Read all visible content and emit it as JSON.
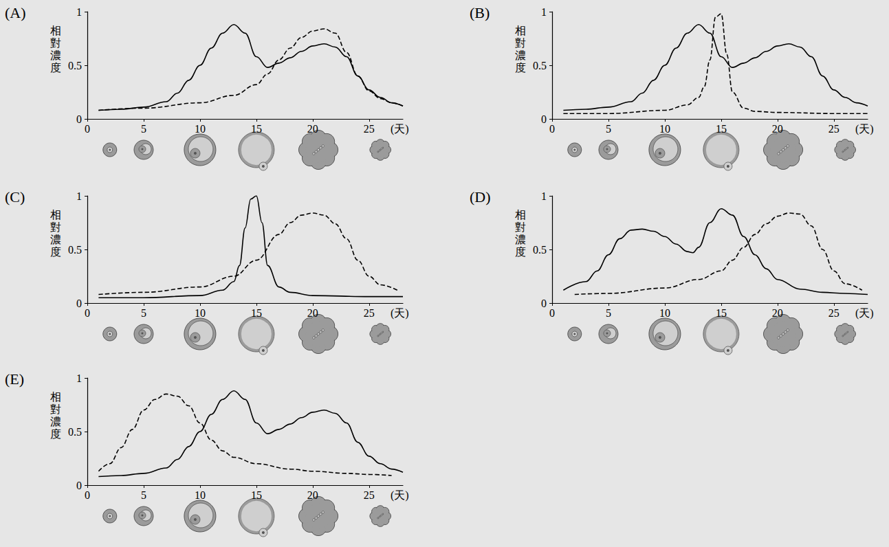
{
  "chart_data": [
    {
      "type": "line",
      "title": "(A)",
      "ylabel": "相對濃度",
      "xlabel": "(天)",
      "xlim": [
        0,
        28
      ],
      "xticks": [
        0,
        5,
        10,
        15,
        20,
        25
      ],
      "ylim": [
        0,
        1
      ],
      "yticks": [
        0,
        0.5,
        1
      ],
      "grid": false,
      "series": [
        {
          "color": "#000000",
          "line_style": "solid",
          "x": [
            1,
            3,
            5,
            7,
            8,
            9,
            10,
            11,
            12,
            13,
            14,
            15,
            16,
            17,
            18,
            19,
            20,
            21,
            22,
            23,
            24,
            25,
            26,
            27,
            28
          ],
          "values": [
            0.08,
            0.09,
            0.11,
            0.16,
            0.24,
            0.36,
            0.5,
            0.66,
            0.8,
            0.88,
            0.8,
            0.58,
            0.48,
            0.52,
            0.57,
            0.63,
            0.68,
            0.7,
            0.67,
            0.58,
            0.4,
            0.27,
            0.2,
            0.15,
            0.12
          ]
        },
        {
          "color": "#000000",
          "line_style": "dashed",
          "x": [
            1,
            5,
            10,
            13,
            15,
            16,
            17,
            18,
            19,
            20,
            21,
            22,
            23,
            24,
            25,
            26,
            27,
            28
          ],
          "values": [
            0.08,
            0.1,
            0.15,
            0.22,
            0.32,
            0.42,
            0.55,
            0.66,
            0.76,
            0.82,
            0.84,
            0.8,
            0.62,
            0.4,
            0.26,
            0.19,
            0.15,
            0.12
          ]
        }
      ]
    },
    {
      "type": "line",
      "title": "(B)",
      "ylabel": "相對濃度",
      "xlabel": "(天)",
      "xlim": [
        0,
        28
      ],
      "xticks": [
        0,
        5,
        10,
        15,
        20,
        25
      ],
      "ylim": [
        0,
        1
      ],
      "yticks": [
        0,
        0.5,
        1
      ],
      "grid": false,
      "series": [
        {
          "color": "#000000",
          "line_style": "solid",
          "x": [
            1,
            3,
            5,
            7,
            8,
            9,
            10,
            11,
            12,
            13,
            14,
            15,
            16,
            17,
            18,
            19,
            20,
            21,
            22,
            23,
            24,
            25,
            26,
            27,
            28
          ],
          "values": [
            0.08,
            0.09,
            0.11,
            0.16,
            0.24,
            0.36,
            0.5,
            0.66,
            0.8,
            0.88,
            0.8,
            0.58,
            0.48,
            0.52,
            0.57,
            0.63,
            0.68,
            0.7,
            0.67,
            0.58,
            0.4,
            0.27,
            0.2,
            0.15,
            0.12
          ]
        },
        {
          "color": "#000000",
          "line_style": "dashed",
          "x": [
            1,
            5,
            10,
            12,
            13,
            13.5,
            14,
            14.5,
            15,
            15.5,
            16,
            17,
            18,
            20,
            25,
            28
          ],
          "values": [
            0.05,
            0.05,
            0.08,
            0.13,
            0.2,
            0.3,
            0.55,
            0.95,
            0.98,
            0.6,
            0.25,
            0.1,
            0.07,
            0.06,
            0.05,
            0.05
          ]
        }
      ]
    },
    {
      "type": "line",
      "title": "(C)",
      "ylabel": "相對濃度",
      "xlabel": "(天)",
      "xlim": [
        0,
        28
      ],
      "xticks": [
        0,
        5,
        10,
        15,
        20,
        25
      ],
      "ylim": [
        0,
        1
      ],
      "yticks": [
        0,
        0.5,
        1
      ],
      "grid": false,
      "series": [
        {
          "color": "#000000",
          "line_style": "solid",
          "x": [
            1,
            5,
            10,
            12,
            13,
            13.5,
            14,
            14.5,
            15,
            15.5,
            16,
            17,
            18,
            20,
            25,
            28
          ],
          "values": [
            0.05,
            0.05,
            0.07,
            0.12,
            0.2,
            0.35,
            0.7,
            0.97,
            1.0,
            0.75,
            0.35,
            0.15,
            0.1,
            0.07,
            0.06,
            0.06
          ]
        },
        {
          "color": "#000000",
          "line_style": "dashed",
          "x": [
            1,
            5,
            10,
            13,
            15,
            17,
            18,
            19,
            20,
            21,
            22,
            23,
            24,
            25,
            26,
            27.5
          ],
          "values": [
            0.08,
            0.1,
            0.15,
            0.25,
            0.4,
            0.64,
            0.75,
            0.82,
            0.84,
            0.82,
            0.74,
            0.6,
            0.4,
            0.25,
            0.17,
            0.12
          ]
        }
      ]
    },
    {
      "type": "line",
      "title": "(D)",
      "ylabel": "相對濃度",
      "xlabel": "(天)",
      "xlim": [
        0,
        28
      ],
      "xticks": [
        0,
        5,
        10,
        15,
        20,
        25
      ],
      "ylim": [
        0,
        1
      ],
      "yticks": [
        0,
        0.5,
        1
      ],
      "grid": false,
      "series": [
        {
          "color": "#000000",
          "line_style": "solid",
          "x": [
            1,
            3,
            4,
            5,
            6,
            7,
            8,
            9,
            10,
            11,
            12,
            12.5,
            13,
            14,
            15,
            16,
            17,
            18,
            19,
            20,
            22,
            24,
            26,
            28
          ],
          "values": [
            0.12,
            0.2,
            0.3,
            0.45,
            0.6,
            0.68,
            0.69,
            0.67,
            0.62,
            0.55,
            0.48,
            0.47,
            0.52,
            0.75,
            0.88,
            0.82,
            0.62,
            0.45,
            0.32,
            0.22,
            0.13,
            0.1,
            0.09,
            0.08
          ]
        },
        {
          "color": "#000000",
          "line_style": "dashed",
          "x": [
            2,
            5,
            10,
            13,
            15,
            16,
            17,
            18,
            19,
            20,
            21,
            22,
            23,
            24,
            25,
            26,
            27.5
          ],
          "values": [
            0.08,
            0.09,
            0.14,
            0.22,
            0.3,
            0.4,
            0.52,
            0.64,
            0.74,
            0.81,
            0.84,
            0.83,
            0.72,
            0.5,
            0.3,
            0.18,
            0.12
          ]
        }
      ]
    },
    {
      "type": "line",
      "title": "(E)",
      "ylabel": "相對濃度",
      "xlabel": "(天)",
      "xlim": [
        0,
        28
      ],
      "xticks": [
        0,
        5,
        10,
        15,
        20,
        25
      ],
      "ylim": [
        0,
        1
      ],
      "yticks": [
        0,
        0.5,
        1
      ],
      "grid": false,
      "series": [
        {
          "color": "#000000",
          "line_style": "solid",
          "x": [
            1,
            3,
            5,
            7,
            8,
            9,
            10,
            11,
            12,
            13,
            14,
            15,
            16,
            17,
            18,
            19,
            20,
            21,
            22,
            23,
            24,
            25,
            26,
            27,
            28
          ],
          "values": [
            0.08,
            0.09,
            0.11,
            0.16,
            0.24,
            0.36,
            0.5,
            0.66,
            0.8,
            0.88,
            0.8,
            0.58,
            0.48,
            0.52,
            0.57,
            0.63,
            0.68,
            0.7,
            0.67,
            0.58,
            0.4,
            0.27,
            0.2,
            0.15,
            0.12
          ]
        },
        {
          "color": "#000000",
          "line_style": "dashed",
          "x": [
            1,
            2,
            3,
            4,
            5,
            6,
            7,
            8,
            9,
            10,
            11,
            12,
            13,
            15,
            18,
            20,
            23,
            25,
            27
          ],
          "values": [
            0.13,
            0.2,
            0.35,
            0.52,
            0.7,
            0.8,
            0.85,
            0.83,
            0.74,
            0.58,
            0.42,
            0.32,
            0.26,
            0.2,
            0.15,
            0.13,
            0.11,
            0.1,
            0.09
          ]
        }
      ]
    }
  ]
}
